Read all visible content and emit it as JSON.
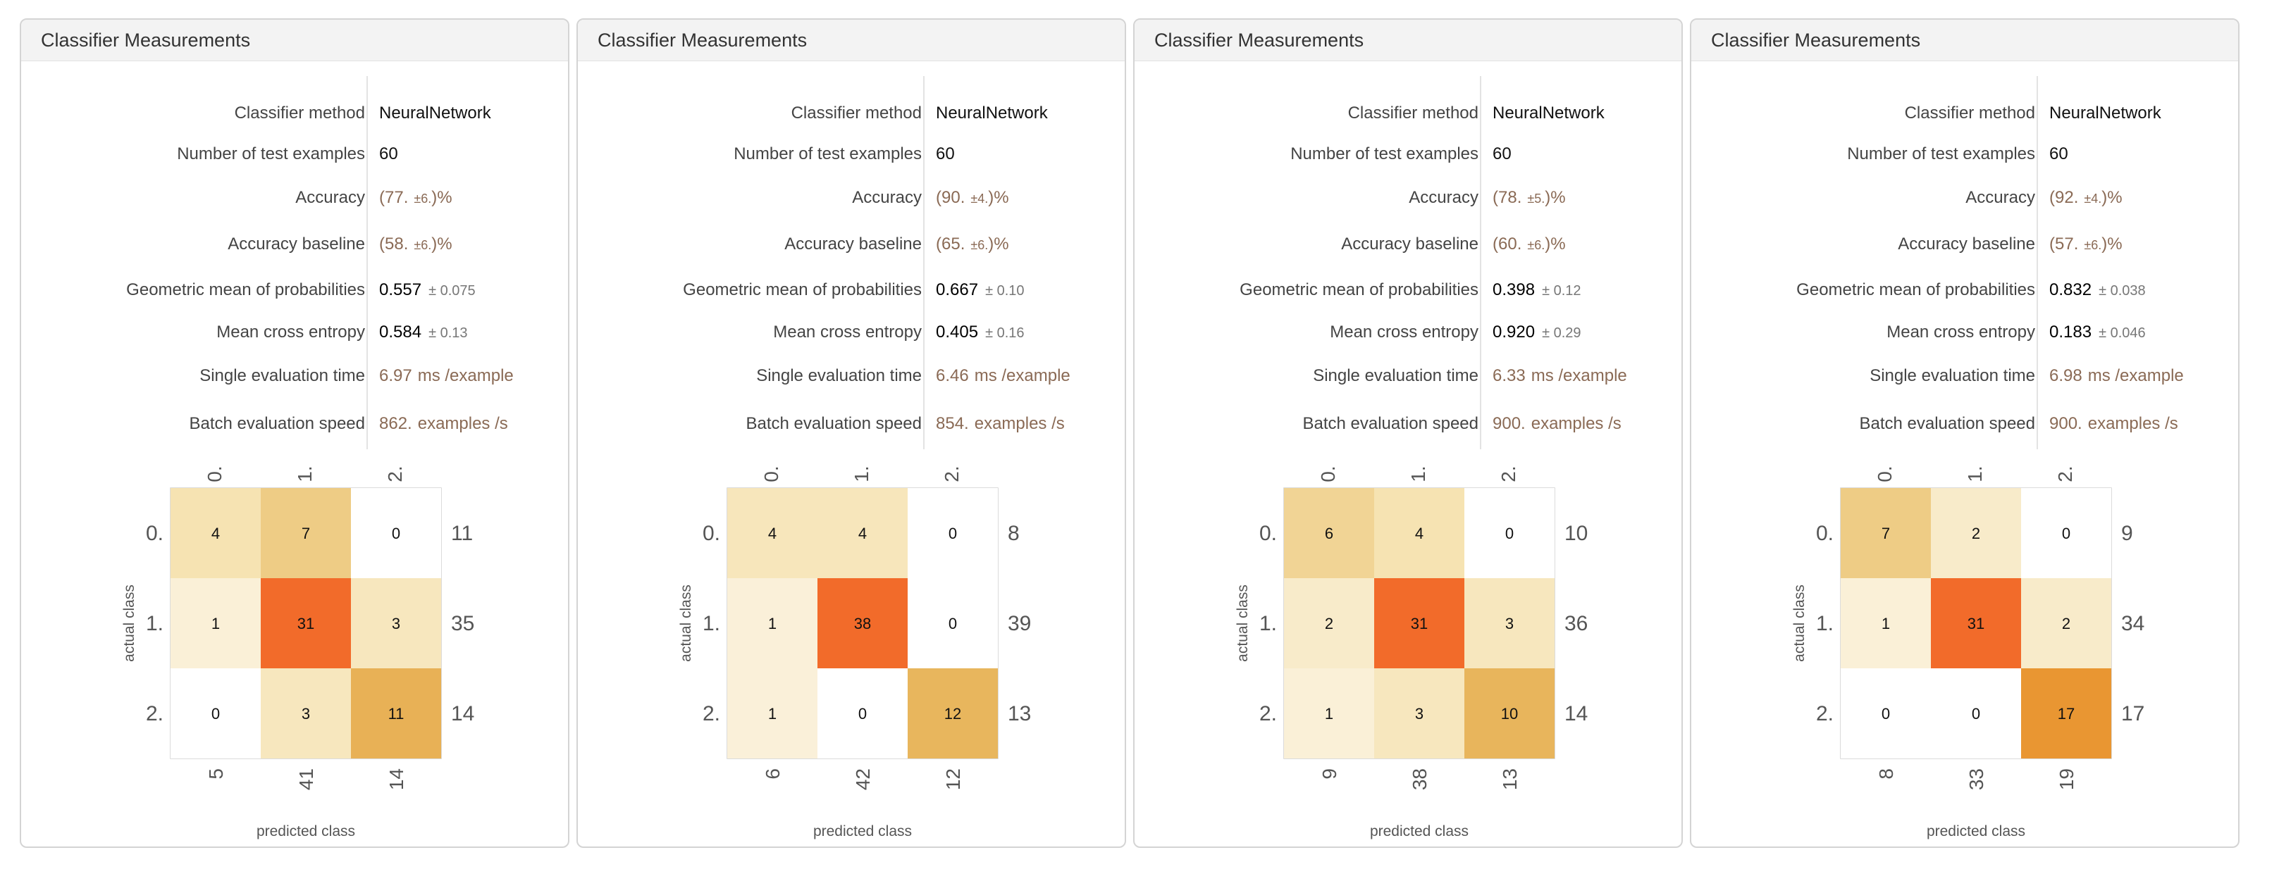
{
  "panels": [
    {
      "title": "Classifier Measurements",
      "method_label": "Classifier method",
      "method": "NeuralNetwork",
      "n_label": "Number of test examples",
      "n": "60",
      "acc_label": "Accuracy",
      "acc_pre": "(77.",
      "acc_err": "±6.",
      "acc_post": ")%",
      "base_label": "Accuracy baseline",
      "base_pre": "(58.",
      "base_err": "±6.",
      "base_post": ")%",
      "geo_label": "Geometric mean of probabilities",
      "geo": "0.557",
      "geo_err": "± 0.075",
      "ce_label": "Mean cross entropy",
      "ce": "0.584",
      "ce_err": "± 0.13",
      "set_label": "Single evaluation time",
      "set": "6.97",
      "set_unit": "ms /example",
      "bes_label": "Batch evaluation speed",
      "bes": "862.",
      "bes_unit": "examples /s",
      "matrix": [
        [
          4,
          7,
          0
        ],
        [
          1,
          31,
          3
        ],
        [
          0,
          3,
          11
        ]
      ],
      "row_totals": [
        "11",
        "35",
        "14"
      ],
      "col_totals": [
        "5",
        "41",
        "14"
      ],
      "class_labels": [
        "0.",
        "1.",
        "2."
      ],
      "actual_label": "actual class",
      "predicted_label": "predicted class"
    },
    {
      "title": "Classifier Measurements",
      "method_label": "Classifier method",
      "method": "NeuralNetwork",
      "n_label": "Number of test examples",
      "n": "60",
      "acc_label": "Accuracy",
      "acc_pre": "(90.",
      "acc_err": "±4.",
      "acc_post": ")%",
      "base_label": "Accuracy baseline",
      "base_pre": "(65.",
      "base_err": "±6.",
      "base_post": ")%",
      "geo_label": "Geometric mean of probabilities",
      "geo": "0.667",
      "geo_err": "± 0.10",
      "ce_label": "Mean cross entropy",
      "ce": "0.405",
      "ce_err": "± 0.16",
      "set_label": "Single evaluation time",
      "set": "6.46",
      "set_unit": "ms /example",
      "bes_label": "Batch evaluation speed",
      "bes": "854.",
      "bes_unit": "examples /s",
      "matrix": [
        [
          4,
          4,
          0
        ],
        [
          1,
          38,
          0
        ],
        [
          1,
          0,
          12
        ]
      ],
      "row_totals": [
        "8",
        "39",
        "13"
      ],
      "col_totals": [
        "6",
        "42",
        "12"
      ],
      "class_labels": [
        "0.",
        "1.",
        "2."
      ],
      "actual_label": "actual class",
      "predicted_label": "predicted class"
    },
    {
      "title": "Classifier Measurements",
      "method_label": "Classifier method",
      "method": "NeuralNetwork",
      "n_label": "Number of test examples",
      "n": "60",
      "acc_label": "Accuracy",
      "acc_pre": "(78.",
      "acc_err": "±5.",
      "acc_post": ")%",
      "base_label": "Accuracy baseline",
      "base_pre": "(60.",
      "base_err": "±6.",
      "base_post": ")%",
      "geo_label": "Geometric mean of probabilities",
      "geo": "0.398",
      "geo_err": "± 0.12",
      "ce_label": "Mean cross entropy",
      "ce": "0.920",
      "ce_err": "± 0.29",
      "set_label": "Single evaluation time",
      "set": "6.33",
      "set_unit": "ms /example",
      "bes_label": "Batch evaluation speed",
      "bes": "900.",
      "bes_unit": "examples /s",
      "matrix": [
        [
          6,
          4,
          0
        ],
        [
          2,
          31,
          3
        ],
        [
          1,
          3,
          10
        ]
      ],
      "row_totals": [
        "10",
        "36",
        "14"
      ],
      "col_totals": [
        "9",
        "38",
        "13"
      ],
      "class_labels": [
        "0.",
        "1.",
        "2."
      ],
      "actual_label": "actual class",
      "predicted_label": "predicted class"
    },
    {
      "title": "Classifier Measurements",
      "method_label": "Classifier method",
      "method": "NeuralNetwork",
      "n_label": "Number of test examples",
      "n": "60",
      "acc_label": "Accuracy",
      "acc_pre": "(92.",
      "acc_err": "±4.",
      "acc_post": ")%",
      "base_label": "Accuracy baseline",
      "base_pre": "(57.",
      "base_err": "±6.",
      "base_post": ")%",
      "geo_label": "Geometric mean of probabilities",
      "geo": "0.832",
      "geo_err": "± 0.038",
      "ce_label": "Mean cross entropy",
      "ce": "0.183",
      "ce_err": "± 0.046",
      "set_label": "Single evaluation time",
      "set": "6.98",
      "set_unit": "ms /example",
      "bes_label": "Batch evaluation speed",
      "bes": "900.",
      "bes_unit": "examples /s",
      "matrix": [
        [
          7,
          2,
          0
        ],
        [
          1,
          31,
          2
        ],
        [
          0,
          0,
          17
        ]
      ],
      "row_totals": [
        "9",
        "34",
        "17"
      ],
      "col_totals": [
        "8",
        "33",
        "19"
      ],
      "class_labels": [
        "0.",
        "1.",
        "2."
      ],
      "actual_label": "actual class",
      "predicted_label": "predicted class"
    }
  ],
  "colors": {
    "border": "#d4d4d4",
    "header_bg": "#f3f3f3",
    "heat_low": "#fbf4e3",
    "heat_high": "#f26b2a"
  }
}
